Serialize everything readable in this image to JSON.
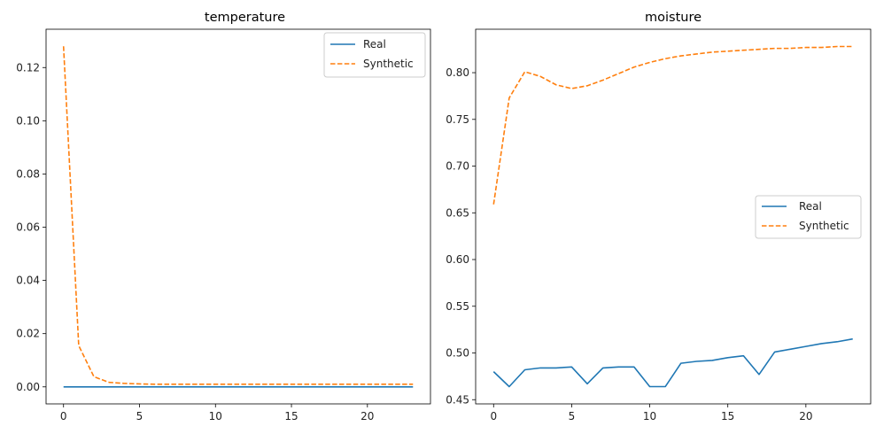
{
  "chart_data": [
    {
      "type": "line",
      "title": "temperature",
      "xlabel": "",
      "ylabel": "",
      "xlim": [
        -1.15,
        24.15
      ],
      "ylim": [
        -0.0064,
        0.1344
      ],
      "xticks": [
        0,
        5,
        10,
        15,
        20
      ],
      "yticks": [
        0.0,
        0.02,
        0.04,
        0.06,
        0.08,
        0.1,
        0.12
      ],
      "yticks_labels": [
        "0.00",
        "0.02",
        "0.04",
        "0.06",
        "0.08",
        "0.10",
        "0.12"
      ],
      "legend_position": "top-right",
      "x": [
        0,
        1,
        2,
        3,
        4,
        5,
        6,
        7,
        8,
        9,
        10,
        11,
        12,
        13,
        14,
        15,
        16,
        17,
        18,
        19,
        20,
        21,
        22,
        23
      ],
      "series": [
        {
          "name": "Real",
          "color": "#1f77b4",
          "style": "solid",
          "values": [
            0,
            0,
            0,
            0,
            0,
            0,
            0,
            0,
            0,
            0,
            0,
            0,
            0,
            0,
            0,
            0,
            0,
            0,
            0,
            0,
            0,
            0,
            0,
            0
          ]
        },
        {
          "name": "Synthetic",
          "color": "#ff7f0e",
          "style": "dashed",
          "values": [
            0.128,
            0.0155,
            0.0038,
            0.0017,
            0.0013,
            0.0011,
            0.001,
            0.001,
            0.001,
            0.001,
            0.001,
            0.001,
            0.001,
            0.001,
            0.001,
            0.001,
            0.001,
            0.001,
            0.001,
            0.001,
            0.001,
            0.001,
            0.001,
            0.001
          ]
        }
      ]
    },
    {
      "type": "line",
      "title": "moisture",
      "xlabel": "",
      "ylabel": "",
      "xlim": [
        -1.15,
        24.15
      ],
      "ylim": [
        0.4455,
        0.8465
      ],
      "xticks": [
        0,
        5,
        10,
        15,
        20
      ],
      "yticks": [
        0.45,
        0.5,
        0.55,
        0.6,
        0.65,
        0.7,
        0.75,
        0.8
      ],
      "yticks_labels": [
        "0.45",
        "0.50",
        "0.55",
        "0.60",
        "0.65",
        "0.70",
        "0.75",
        "0.80"
      ],
      "legend_position": "center-right",
      "x": [
        0,
        1,
        2,
        3,
        4,
        5,
        6,
        7,
        8,
        9,
        10,
        11,
        12,
        13,
        14,
        15,
        16,
        17,
        18,
        19,
        20,
        21,
        22,
        23
      ],
      "series": [
        {
          "name": "Real",
          "color": "#1f77b4",
          "style": "solid",
          "values": [
            0.48,
            0.464,
            0.482,
            0.484,
            0.484,
            0.485,
            0.467,
            0.484,
            0.485,
            0.485,
            0.464,
            0.464,
            0.489,
            0.491,
            0.492,
            0.495,
            0.497,
            0.477,
            0.501,
            0.504,
            0.507,
            0.51,
            0.512,
            0.515
          ]
        },
        {
          "name": "Synthetic",
          "color": "#ff7f0e",
          "style": "dashed",
          "values": [
            0.659,
            0.773,
            0.801,
            0.796,
            0.787,
            0.783,
            0.786,
            0.792,
            0.799,
            0.806,
            0.811,
            0.815,
            0.818,
            0.82,
            0.822,
            0.823,
            0.824,
            0.825,
            0.826,
            0.826,
            0.827,
            0.827,
            0.828,
            0.828
          ]
        }
      ]
    }
  ]
}
